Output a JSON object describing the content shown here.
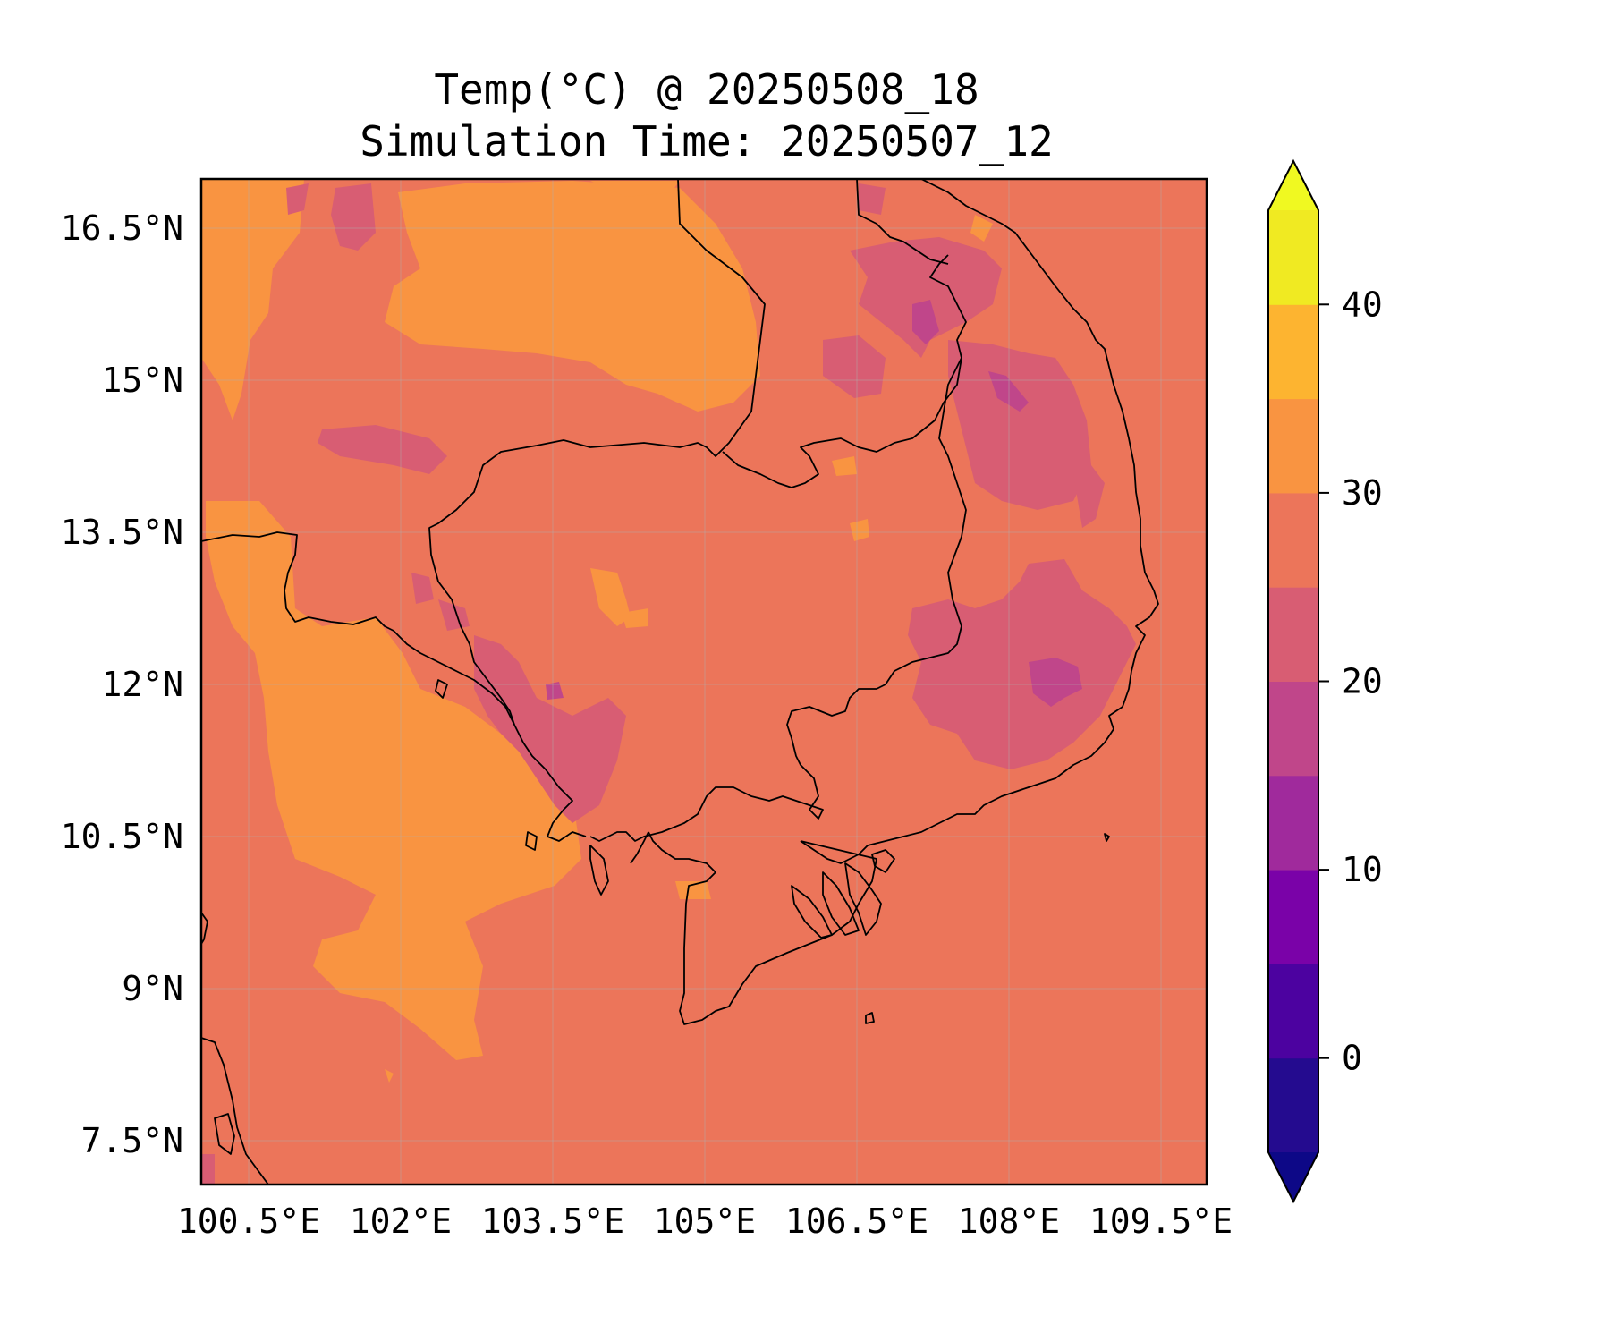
{
  "title": {
    "line1": "Temp(°C) @ 20250508_18",
    "line2": "Simulation Time: 20250507_12"
  },
  "map": {
    "x_ticks": [
      "100.5°E",
      "102°E",
      "103.5°E",
      "105°E",
      "106.5°E",
      "108°E",
      "109.5°E"
    ],
    "y_ticks": [
      "16.5°N",
      "15°N",
      "13.5°N",
      "12°N",
      "10.5°N",
      "9°N",
      "7.5°N"
    ],
    "lon_range": [
      100.5,
      110.4
    ],
    "lat_range": [
      7.0,
      16.9
    ],
    "gridlines": true,
    "coastlines": true,
    "borders": true
  },
  "colorbar": {
    "tick_labels": [
      "40",
      "30",
      "20",
      "10",
      "0"
    ],
    "levels": [
      -5,
      0,
      5,
      10,
      15,
      20,
      25,
      30,
      35,
      40,
      45
    ],
    "extend": "both",
    "colormap": "plasma",
    "band_colors": [
      "#240b8f",
      "#4c02a0",
      "#7a02a8",
      "#a02a9c",
      "#c0468a",
      "#d85d73",
      "#ec755a",
      "#f99441",
      "#fdb430",
      "#f0ea22"
    ],
    "under_color": "#0d0887",
    "over_color": "#f0f921"
  },
  "colors": {
    "base_25_30": "#ec755a",
    "warm_30_35": "#f99441",
    "cool_20_25": "#d85d73",
    "cold_15_20": "#c0468a"
  }
}
